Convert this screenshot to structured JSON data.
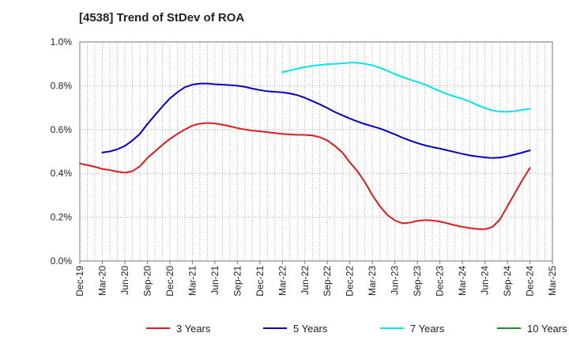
{
  "chart_data": {
    "type": "line",
    "title": "[4538]  Trend of StDev of ROA",
    "xlabel": "",
    "ylabel": "",
    "ylim": [
      0,
      1.0
    ],
    "y_ticks": [
      "0.0%",
      "0.2%",
      "0.4%",
      "0.6%",
      "0.8%",
      "1.0%"
    ],
    "x_ticks": [
      "Dec-19",
      "Mar-20",
      "Jun-20",
      "Sep-20",
      "Dec-20",
      "Mar-21",
      "Jun-21",
      "Sep-21",
      "Dec-21",
      "Mar-22",
      "Jun-22",
      "Sep-22",
      "Dec-22",
      "Mar-23",
      "Jun-23",
      "Sep-23",
      "Dec-23",
      "Mar-24",
      "Jun-24",
      "Sep-24",
      "Dec-24",
      "Mar-25"
    ],
    "grid": true,
    "legend_position": "bottom",
    "series": [
      {
        "name": "3 Years",
        "color": "#e31a1c",
        "points": [
          [
            "2019-12",
            0.445
          ],
          [
            "2020-02",
            0.43
          ],
          [
            "2020-03",
            0.42
          ],
          [
            "2020-04",
            0.415
          ],
          [
            "2020-05",
            0.408
          ],
          [
            "2020-06",
            0.403
          ],
          [
            "2020-07",
            0.41
          ],
          [
            "2020-08",
            0.432
          ],
          [
            "2020-09",
            0.47
          ],
          [
            "2020-10",
            0.5
          ],
          [
            "2020-11",
            0.53
          ],
          [
            "2020-12",
            0.557
          ],
          [
            "2021-01",
            0.58
          ],
          [
            "2021-02",
            0.6
          ],
          [
            "2021-03",
            0.618
          ],
          [
            "2021-04",
            0.627
          ],
          [
            "2021-05",
            0.63
          ],
          [
            "2021-06",
            0.628
          ],
          [
            "2021-07",
            0.622
          ],
          [
            "2021-08",
            0.615
          ],
          [
            "2021-09",
            0.607
          ],
          [
            "2021-10",
            0.6
          ],
          [
            "2021-11",
            0.595
          ],
          [
            "2021-12",
            0.592
          ],
          [
            "2022-01",
            0.588
          ],
          [
            "2022-02",
            0.584
          ],
          [
            "2022-03",
            0.58
          ],
          [
            "2022-04",
            0.578
          ],
          [
            "2022-05",
            0.576
          ],
          [
            "2022-06",
            0.576
          ],
          [
            "2022-07",
            0.573
          ],
          [
            "2022-08",
            0.565
          ],
          [
            "2022-09",
            0.55
          ],
          [
            "2022-10",
            0.525
          ],
          [
            "2022-11",
            0.495
          ],
          [
            "2022-12",
            0.45
          ],
          [
            "2023-01",
            0.41
          ],
          [
            "2023-02",
            0.36
          ],
          [
            "2023-03",
            0.3
          ],
          [
            "2023-04",
            0.25
          ],
          [
            "2023-05",
            0.21
          ],
          [
            "2023-06",
            0.185
          ],
          [
            "2023-07",
            0.172
          ],
          [
            "2023-08",
            0.175
          ],
          [
            "2023-09",
            0.183
          ],
          [
            "2023-10",
            0.187
          ],
          [
            "2023-11",
            0.185
          ],
          [
            "2023-12",
            0.18
          ],
          [
            "2024-01",
            0.172
          ],
          [
            "2024-02",
            0.163
          ],
          [
            "2024-03",
            0.156
          ],
          [
            "2024-04",
            0.15
          ],
          [
            "2024-05",
            0.146
          ],
          [
            "2024-06",
            0.145
          ],
          [
            "2024-07",
            0.155
          ],
          [
            "2024-08",
            0.19
          ],
          [
            "2024-09",
            0.25
          ],
          [
            "2024-10",
            0.31
          ],
          [
            "2024-11",
            0.37
          ],
          [
            "2024-12",
            0.425
          ]
        ]
      },
      {
        "name": "5 Years",
        "color": "#0000cc",
        "points": [
          [
            "2020-03",
            0.495
          ],
          [
            "2020-04",
            0.5
          ],
          [
            "2020-05",
            0.51
          ],
          [
            "2020-06",
            0.525
          ],
          [
            "2020-07",
            0.55
          ],
          [
            "2020-08",
            0.58
          ],
          [
            "2020-09",
            0.625
          ],
          [
            "2020-10",
            0.665
          ],
          [
            "2020-11",
            0.705
          ],
          [
            "2020-12",
            0.742
          ],
          [
            "2021-01",
            0.77
          ],
          [
            "2021-02",
            0.793
          ],
          [
            "2021-03",
            0.805
          ],
          [
            "2021-04",
            0.81
          ],
          [
            "2021-05",
            0.81
          ],
          [
            "2021-06",
            0.807
          ],
          [
            "2021-07",
            0.805
          ],
          [
            "2021-08",
            0.803
          ],
          [
            "2021-09",
            0.8
          ],
          [
            "2021-10",
            0.795
          ],
          [
            "2021-11",
            0.787
          ],
          [
            "2021-12",
            0.78
          ],
          [
            "2022-01",
            0.775
          ],
          [
            "2022-02",
            0.772
          ],
          [
            "2022-03",
            0.77
          ],
          [
            "2022-04",
            0.765
          ],
          [
            "2022-05",
            0.757
          ],
          [
            "2022-06",
            0.745
          ],
          [
            "2022-07",
            0.73
          ],
          [
            "2022-08",
            0.715
          ],
          [
            "2022-09",
            0.698
          ],
          [
            "2022-10",
            0.68
          ],
          [
            "2022-11",
            0.665
          ],
          [
            "2022-12",
            0.65
          ],
          [
            "2023-01",
            0.637
          ],
          [
            "2023-02",
            0.625
          ],
          [
            "2023-03",
            0.615
          ],
          [
            "2023-04",
            0.605
          ],
          [
            "2023-05",
            0.592
          ],
          [
            "2023-06",
            0.578
          ],
          [
            "2023-07",
            0.563
          ],
          [
            "2023-08",
            0.55
          ],
          [
            "2023-09",
            0.538
          ],
          [
            "2023-10",
            0.528
          ],
          [
            "2023-11",
            0.52
          ],
          [
            "2023-12",
            0.513
          ],
          [
            "2024-01",
            0.505
          ],
          [
            "2024-02",
            0.497
          ],
          [
            "2024-03",
            0.489
          ],
          [
            "2024-04",
            0.482
          ],
          [
            "2024-05",
            0.477
          ],
          [
            "2024-06",
            0.473
          ],
          [
            "2024-07",
            0.47
          ],
          [
            "2024-08",
            0.472
          ],
          [
            "2024-09",
            0.478
          ],
          [
            "2024-10",
            0.486
          ],
          [
            "2024-11",
            0.495
          ],
          [
            "2024-12",
            0.505
          ]
        ]
      },
      {
        "name": "7 Years",
        "color": "#00e5ee",
        "points": [
          [
            "2022-03",
            0.862
          ],
          [
            "2022-04",
            0.87
          ],
          [
            "2022-05",
            0.878
          ],
          [
            "2022-06",
            0.885
          ],
          [
            "2022-07",
            0.891
          ],
          [
            "2022-08",
            0.895
          ],
          [
            "2022-09",
            0.898
          ],
          [
            "2022-10",
            0.9
          ],
          [
            "2022-11",
            0.902
          ],
          [
            "2022-12",
            0.905
          ],
          [
            "2023-01",
            0.905
          ],
          [
            "2023-02",
            0.9
          ],
          [
            "2023-03",
            0.893
          ],
          [
            "2023-04",
            0.882
          ],
          [
            "2023-05",
            0.868
          ],
          [
            "2023-06",
            0.853
          ],
          [
            "2023-07",
            0.84
          ],
          [
            "2023-08",
            0.828
          ],
          [
            "2023-09",
            0.817
          ],
          [
            "2023-10",
            0.805
          ],
          [
            "2023-11",
            0.79
          ],
          [
            "2023-12",
            0.775
          ],
          [
            "2024-01",
            0.762
          ],
          [
            "2024-02",
            0.75
          ],
          [
            "2024-03",
            0.74
          ],
          [
            "2024-04",
            0.727
          ],
          [
            "2024-05",
            0.712
          ],
          [
            "2024-06",
            0.698
          ],
          [
            "2024-07",
            0.687
          ],
          [
            "2024-08",
            0.682
          ],
          [
            "2024-09",
            0.681
          ],
          [
            "2024-10",
            0.684
          ],
          [
            "2024-11",
            0.69
          ],
          [
            "2024-12",
            0.695
          ]
        ]
      },
      {
        "name": "10 Years",
        "color": "#228b22",
        "points": []
      }
    ]
  }
}
